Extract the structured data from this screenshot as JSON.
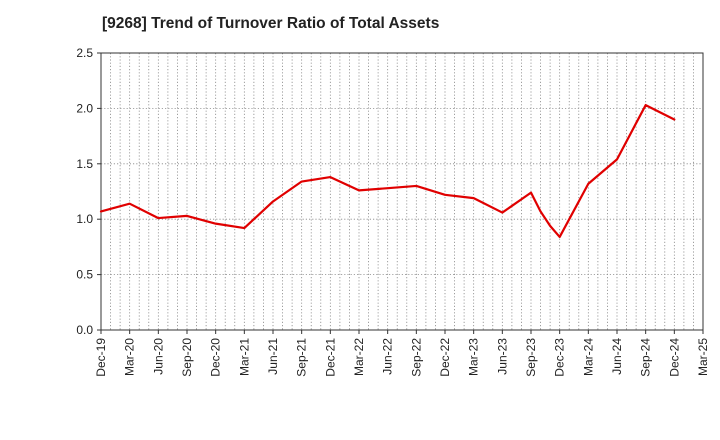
{
  "chart_data": {
    "type": "line",
    "title": "[9268]  Trend of Turnover Ratio of Total Assets",
    "xlabel": "",
    "ylabel": "",
    "x_ticks": [
      "Dec-19",
      "Mar-20",
      "Jun-20",
      "Sep-20",
      "Dec-20",
      "Mar-21",
      "Jun-21",
      "Sep-21",
      "Dec-21",
      "Mar-22",
      "Jun-22",
      "Sep-22",
      "Dec-22",
      "Mar-23",
      "Jun-23",
      "Sep-23",
      "Dec-23",
      "Mar-24",
      "Jun-24",
      "Sep-24",
      "Dec-24",
      "Mar-25"
    ],
    "y_ticks": [
      "0.0",
      "0.5",
      "1.0",
      "1.5",
      "2.0",
      "2.5"
    ],
    "ylim": [
      0,
      2.5
    ],
    "grid": "dotted",
    "series": [
      {
        "color": "#e00000",
        "x": [
          "Dec-19",
          "Mar-20",
          "Jun-20",
          "Sep-20",
          "Dec-20",
          "Mar-21",
          "Jun-21",
          "Sep-21",
          "Dec-21",
          "Mar-22",
          "Jun-22",
          "Sep-22",
          "Dec-22",
          "Mar-23",
          "Jun-23",
          "Sep-23",
          "Oct-23",
          "Nov-23",
          "Dec-23",
          "Mar-24",
          "Jun-24",
          "Sep-24",
          "Dec-24"
        ],
        "values": [
          1.07,
          1.14,
          1.01,
          1.03,
          0.96,
          0.92,
          1.16,
          1.34,
          1.38,
          1.26,
          1.28,
          1.3,
          1.22,
          1.19,
          1.06,
          1.24,
          1.07,
          0.94,
          0.84,
          1.32,
          1.54,
          2.03,
          1.9
        ]
      }
    ]
  }
}
